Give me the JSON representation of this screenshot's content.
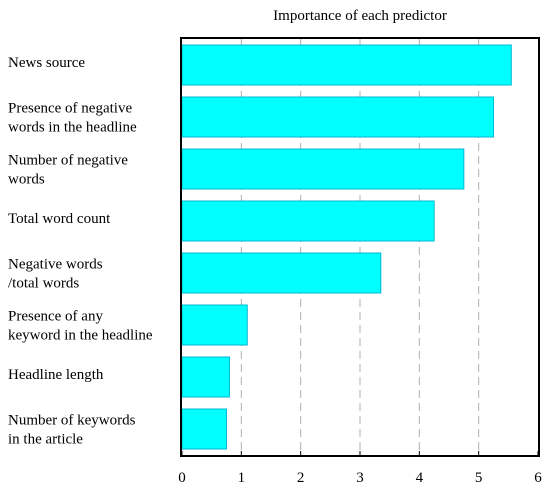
{
  "chart_data": {
    "type": "bar",
    "orientation": "horizontal",
    "title": "Importance of each predictor",
    "xlabel": "",
    "ylabel": "",
    "xlim": [
      0,
      6
    ],
    "x_ticks": [
      "0",
      "1",
      "2",
      "3",
      "4",
      "5",
      "6"
    ],
    "grid": "vertical dashed",
    "bar_color": "#00ffff",
    "bar_edge_color": "#00b8d4",
    "categories": [
      [
        "News source"
      ],
      [
        "Presence of negative",
        "words in the headline"
      ],
      [
        "Number of negative",
        "words"
      ],
      [
        "Total word count"
      ],
      [
        "Negative words",
        "/total words"
      ],
      [
        "Presence of any",
        "keyword in the headline"
      ],
      [
        "Headline length"
      ],
      [
        "Number of keywords",
        "in the article"
      ]
    ],
    "values": [
      5.55,
      5.25,
      4.75,
      4.25,
      3.35,
      1.1,
      0.8,
      0.75
    ]
  }
}
